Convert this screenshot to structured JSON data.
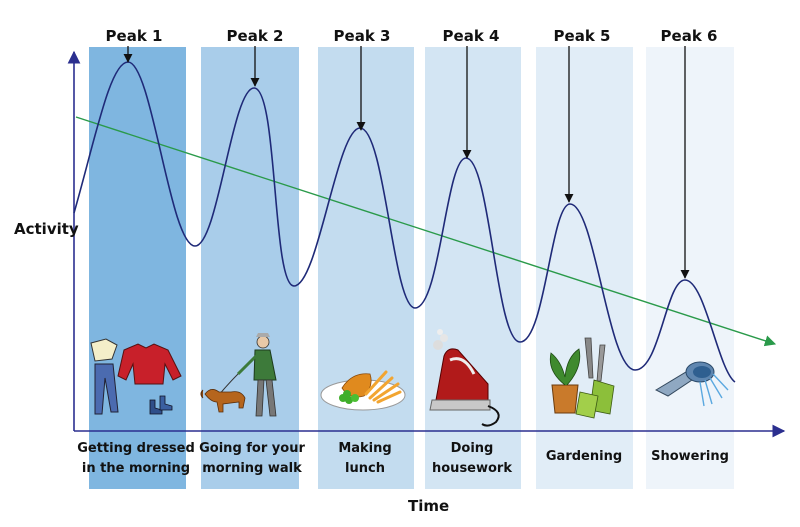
{
  "axes": {
    "y_label": "Activity",
    "x_label": "Time"
  },
  "colors": {
    "axis": "#2b2f8f",
    "curve": "#1f2a78",
    "trend": "#2a9a4a",
    "panels": [
      "#7fb6e0",
      "#a9cdea",
      "#c3dcef",
      "#d3e5f3",
      "#e1edf7",
      "#eef4fa"
    ]
  },
  "activities": [
    {
      "peak": "Peak 1",
      "lines": [
        "Getting dressed",
        "in the morning"
      ],
      "icon": "clothes-icon"
    },
    {
      "peak": "Peak 2",
      "lines": [
        "Going for your",
        "morning walk"
      ],
      "icon": "dog-walk-icon"
    },
    {
      "peak": "Peak 3",
      "lines": [
        "Making",
        "lunch"
      ],
      "icon": "meal-plate-icon"
    },
    {
      "peak": "Peak 4",
      "lines": [
        "Doing",
        "housework"
      ],
      "icon": "iron-icon"
    },
    {
      "peak": "Peak 5",
      "lines": [
        "Gardening"
      ],
      "icon": "gardening-icon"
    },
    {
      "peak": "Peak 6",
      "lines": [
        "Showering"
      ],
      "icon": "shower-icon"
    }
  ]
}
